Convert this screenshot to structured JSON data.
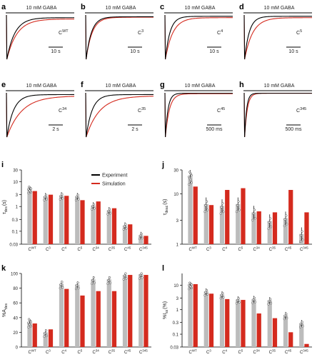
{
  "colors": {
    "experiment": "#000000",
    "simulation": "#d42a1e",
    "bar_exp": "#bcbcbc"
  },
  "trace_panels": [
    {
      "letter": "a",
      "stim": "10 mM GABA",
      "label": "C",
      "sup": "WT",
      "scale": "10 s",
      "tau_e": 0.12,
      "tau_s": 0.15,
      "ss_e": 0.06,
      "ss_s": 0.09
    },
    {
      "letter": "b",
      "stim": "10 mM GABA",
      "label": "C",
      "sup": "3",
      "scale": "10 s",
      "tau_e": 0.08,
      "tau_s": 0.09,
      "ss_e": 0.04,
      "ss_s": 0.05
    },
    {
      "letter": "c",
      "stim": "10 mM GABA",
      "label": "C",
      "sup": "4",
      "scale": "10 s",
      "tau_e": 0.07,
      "tau_s": 0.11,
      "ss_e": 0.03,
      "ss_s": 0.06
    },
    {
      "letter": "d",
      "stim": "10 mM GABA",
      "label": "C",
      "sup": "5",
      "scale": "10 s",
      "tau_e": 0.07,
      "tau_s": 0.12,
      "ss_e": 0.03,
      "ss_s": 0.06
    },
    {
      "letter": "e",
      "stim": "10 mM GABA",
      "label": "C",
      "sup": "34",
      "scale": "2 s",
      "tau_e": 0.1,
      "tau_s": 0.22,
      "ss_e": 0.04,
      "ss_s": 0.07
    },
    {
      "letter": "f",
      "stim": "10 mM GABA",
      "label": "C",
      "sup": "35",
      "scale": "2 s",
      "tau_e": 0.09,
      "tau_s": 0.2,
      "ss_e": 0.04,
      "ss_s": 0.07
    },
    {
      "letter": "g",
      "stim": "10 mM GABA",
      "label": "C",
      "sup": "45",
      "scale": "500 ms",
      "tau_e": 0.04,
      "tau_s": 0.06,
      "ss_e": 0.01,
      "ss_s": 0.02
    },
    {
      "letter": "h",
      "stim": "10 mM GABA",
      "label": "C",
      "sup": "345",
      "scale": "500 ms",
      "tau_e": 0.03,
      "tau_s": 0.04,
      "ss_e": 0.01,
      "ss_s": 0.01
    }
  ],
  "legend": {
    "experiment": "Experiment",
    "simulation": "Simulation"
  },
  "chart_data": [
    {
      "panel": "i",
      "type": "bar",
      "ylabel": "τ",
      "ylabel_sub": "des",
      "ylabel_unit": "(s)",
      "scale": "log",
      "ylim": [
        0.03,
        30
      ],
      "yticks": [
        "0.03",
        "0.1",
        "0.3",
        "1",
        "3",
        "10",
        "30"
      ],
      "ytick_values": [
        0.03,
        0.1,
        0.3,
        1,
        3,
        10,
        30
      ],
      "categories": [
        "WT",
        "3",
        "4",
        "5",
        "34",
        "35",
        "45",
        "345"
      ],
      "series": [
        {
          "name": "Experiment",
          "values": [
            5,
            2.6,
            2.8,
            2.6,
            1.1,
            0.7,
            0.17,
            0.07
          ]
        },
        {
          "name": "Simulation",
          "values": [
            4.2,
            3.0,
            2.7,
            1.8,
            1.6,
            0.85,
            0.19,
            0.065
          ]
        }
      ]
    },
    {
      "panel": "j",
      "type": "bar",
      "ylabel": "τ",
      "ylabel_sub": "deac",
      "ylabel_unit": "(s)",
      "scale": "log",
      "ylim": [
        1,
        30
      ],
      "yticks": [
        "1",
        "3",
        "10",
        "30"
      ],
      "ytick_values": [
        1,
        3,
        10,
        30
      ],
      "categories": [
        "WT",
        "3",
        "4",
        "5",
        "34",
        "35",
        "45",
        "345"
      ],
      "series": [
        {
          "name": "Experiment",
          "values": [
            22,
            6.3,
            5.8,
            6.3,
            4.3,
            2.9,
            3.3,
            1.6
          ]
        },
        {
          "name": "Simulation",
          "values": [
            14,
            6.0,
            12,
            13,
            4.5,
            4.3,
            12,
            4.3
          ]
        }
      ]
    },
    {
      "panel": "k",
      "type": "bar",
      "ylabel": "%A",
      "ylabel_sub": "des",
      "scale": "linear",
      "ylim": [
        0,
        100
      ],
      "yticks": [
        "0",
        "20",
        "40",
        "60",
        "80",
        "100"
      ],
      "ytick_values": [
        0,
        20,
        40,
        60,
        80,
        100
      ],
      "categories": [
        "WT",
        "3",
        "4",
        "5",
        "34",
        "35",
        "45",
        "345"
      ],
      "series": [
        {
          "name": "Experiment",
          "values": [
            33,
            20,
            86,
            85,
            92,
            92,
            98,
            99
          ]
        },
        {
          "name": "Simulation",
          "values": [
            32,
            24,
            79,
            70,
            76,
            76,
            98,
            98
          ]
        }
      ]
    },
    {
      "panel": "l",
      "type": "bar",
      "ylabel": "%I",
      "ylabel_sub": "ss",
      "ylabel_unit": "(%)",
      "scale": "log",
      "ylim": [
        0.03,
        30
      ],
      "yticks": [
        "0.03",
        "0.1",
        "0.3",
        "1",
        "3",
        "10"
      ],
      "ytick_values": [
        0.03,
        0.1,
        0.3,
        1,
        3,
        10
      ],
      "categories": [
        "WT",
        "3",
        "4",
        "5",
        "34",
        "35",
        "45",
        "345"
      ],
      "series": [
        {
          "name": "Experiment",
          "values": [
            10,
            5.5,
            4.2,
            2.6,
            2.7,
            2.4,
            0.6,
            0.28
          ]
        },
        {
          "name": "Simulation",
          "values": [
            11,
            4.5,
            2.7,
            2.5,
            0.7,
            0.45,
            0.12,
            0.04
          ]
        }
      ]
    }
  ]
}
